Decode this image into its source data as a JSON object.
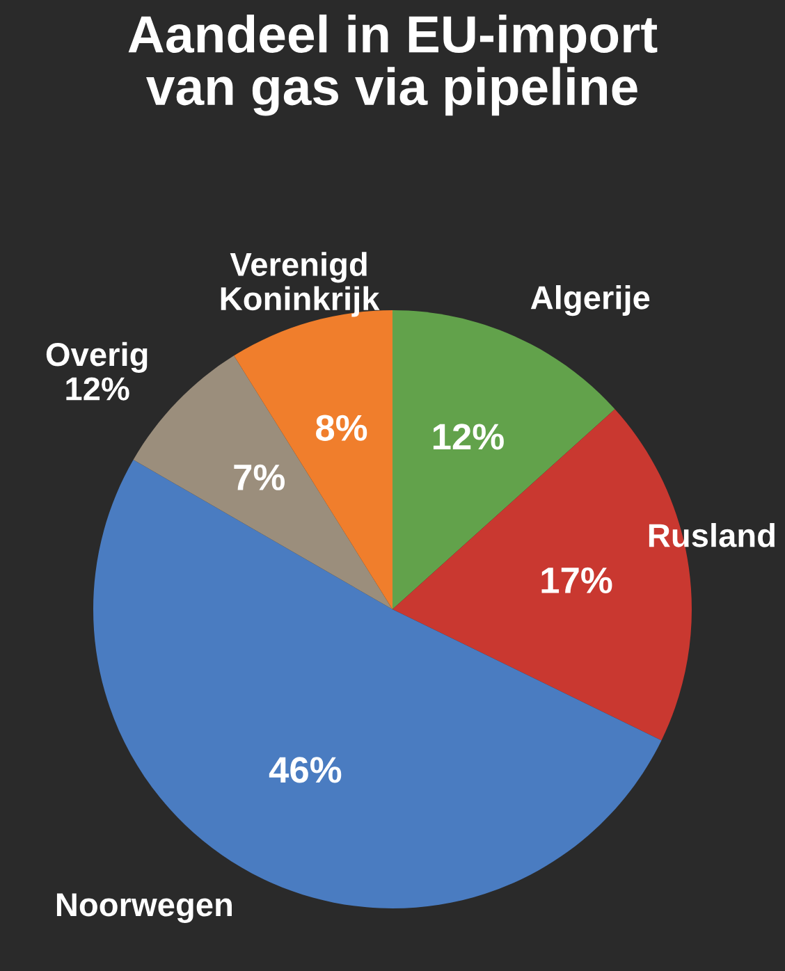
{
  "chart_data": {
    "type": "pie",
    "title": "Aandeel in EU-import\nvan gas via pipeline",
    "categories": [
      "Algerije",
      "Rusland",
      "Noorwegen",
      "Overig\n12%",
      "Verenigd\nKoninkrijk"
    ],
    "values": [
      12,
      17,
      46,
      7,
      8
    ],
    "value_labels": [
      "12%",
      "17%",
      "46%",
      "7%",
      "8%"
    ],
    "colors": [
      "#62a24b",
      "#c93830",
      "#4a7cc1",
      "#9b8e7c",
      "#f07e2c"
    ]
  }
}
